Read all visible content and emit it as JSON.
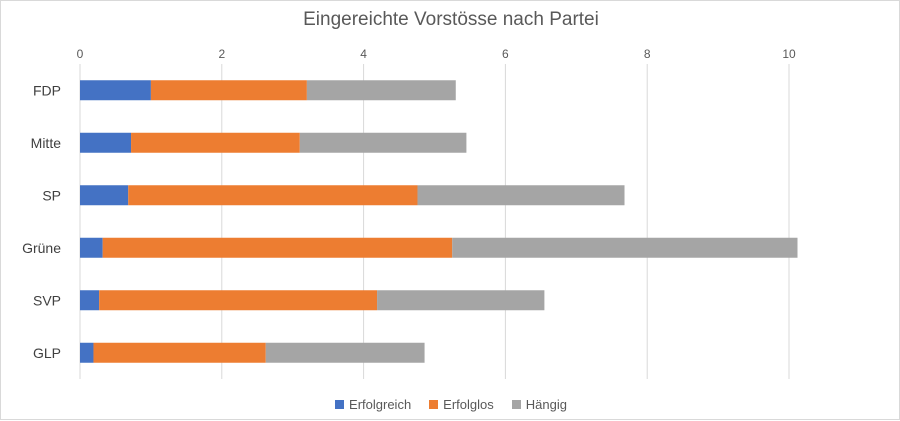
{
  "chart_data": {
    "type": "bar",
    "orientation": "horizontal",
    "stacked": true,
    "title": "Eingereichte Vorstösse nach Partei",
    "categories": [
      "FDP",
      "Mitte",
      "SP",
      "Grüne",
      "SVP",
      "GLP"
    ],
    "series": [
      {
        "name": "Erfolgreich",
        "color": "#4472C4",
        "values": [
          1.0,
          0.72,
          0.68,
          0.32,
          0.27,
          0.19
        ]
      },
      {
        "name": "Erfolglos",
        "color": "#ED7D31",
        "values": [
          2.2,
          2.38,
          4.08,
          4.93,
          3.92,
          2.43
        ]
      },
      {
        "name": "Hängig",
        "color": "#A5A5A5",
        "values": [
          2.1,
          2.35,
          2.92,
          4.87,
          2.36,
          2.24
        ]
      }
    ],
    "x_ticks": [
      "0",
      "2",
      "4",
      "6",
      "8",
      "10"
    ],
    "xlim": [
      0,
      10.8
    ],
    "x_axis_position": "top",
    "grid": true,
    "legend_position": "bottom"
  }
}
